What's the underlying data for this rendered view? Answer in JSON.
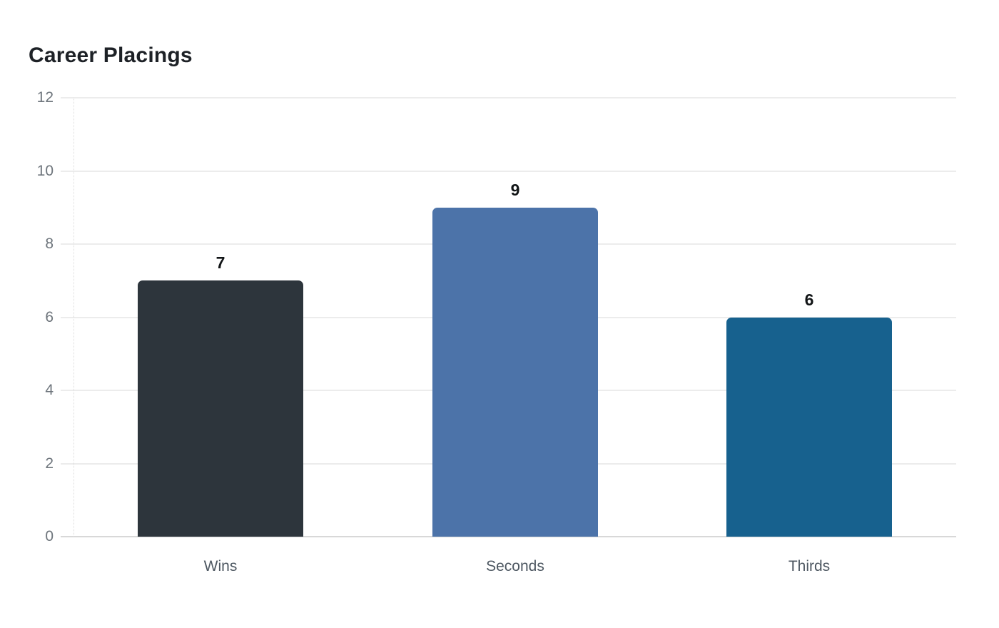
{
  "chart_data": {
    "type": "bar",
    "title": "Career Placings",
    "categories": [
      "Wins",
      "Seconds",
      "Thirds"
    ],
    "values": [
      7,
      9,
      6
    ],
    "value_labels": [
      "7",
      "9",
      "6"
    ],
    "bar_colors": [
      "#2d353c",
      "#4c73a9",
      "#17618e"
    ],
    "yticks": [
      0,
      2,
      4,
      6,
      8,
      10,
      12
    ],
    "ylim": [
      0,
      12
    ],
    "xlabel": "",
    "ylabel": "",
    "grid": "horizontal-only",
    "legend": "none",
    "background_color": "#ffffff"
  }
}
